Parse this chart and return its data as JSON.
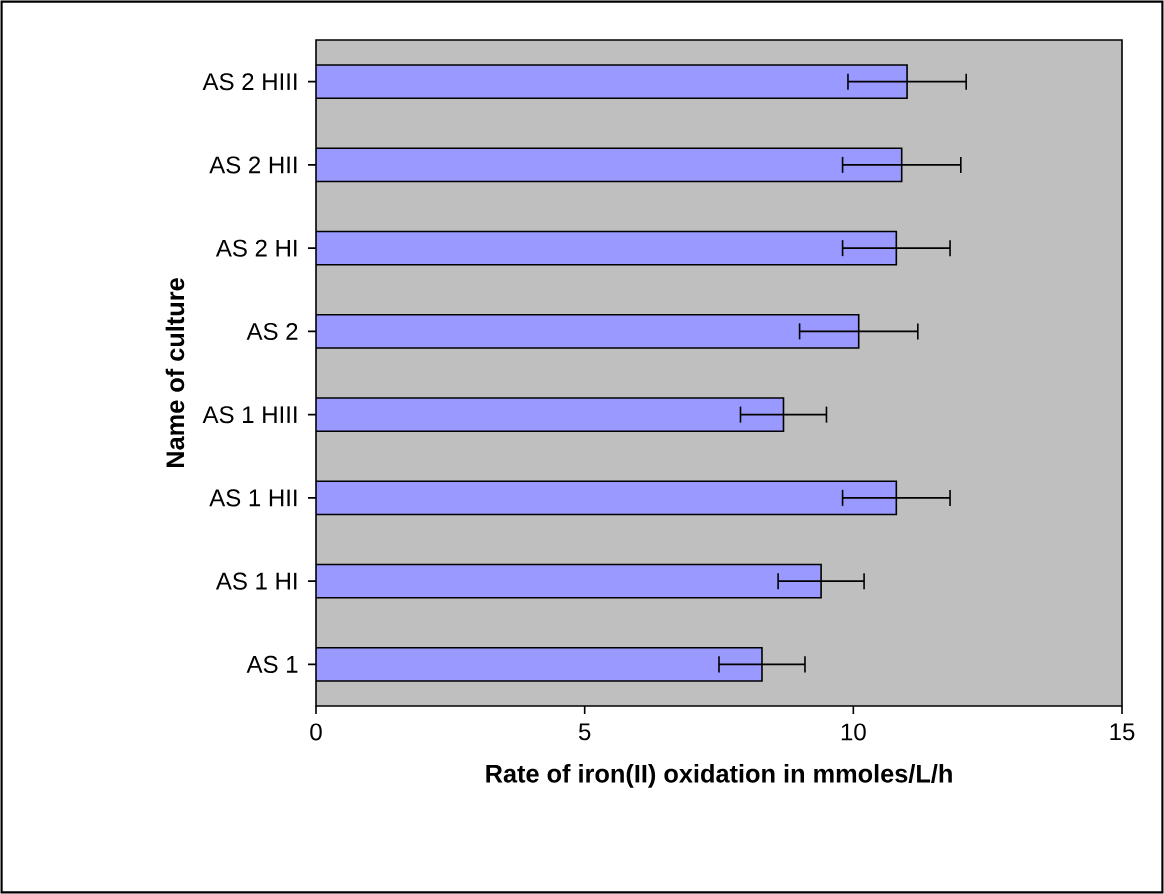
{
  "chart_data": {
    "type": "bar",
    "orientation": "horizontal",
    "categories": [
      "AS 2 HIII",
      "AS 2 HII",
      "AS 2 HI",
      "AS 2",
      "AS 1 HIII",
      "AS 1 HII",
      "AS 1 HI",
      "AS 1"
    ],
    "values": [
      11.0,
      10.9,
      10.8,
      10.1,
      8.7,
      10.8,
      9.4,
      8.3
    ],
    "errors": [
      1.1,
      1.1,
      1.0,
      1.1,
      0.8,
      1.0,
      0.8,
      0.8
    ],
    "color": "#9999ff",
    "xlabel": "Rate of iron(II) oxidation in mmoles/L/h",
    "ylabel": "Name of culture",
    "xlim": [
      0,
      15
    ],
    "xticks": [
      0,
      5,
      10,
      15
    ]
  }
}
